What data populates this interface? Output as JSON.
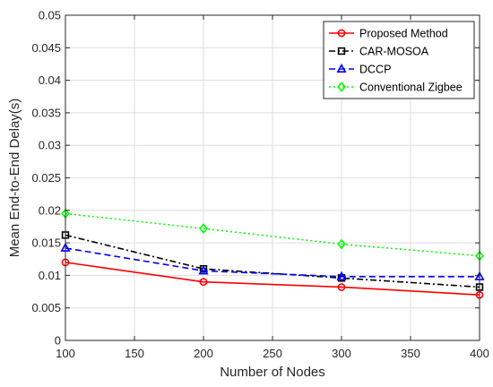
{
  "chart_data": {
    "type": "line",
    "title": "",
    "xlabel": "Number of Nodes",
    "ylabel": "Mean End-to-End Delay(s)",
    "x": [
      100,
      200,
      300,
      400
    ],
    "xlim": [
      100,
      400
    ],
    "ylim": [
      0,
      0.05
    ],
    "xticks": [
      "100",
      "150",
      "200",
      "250",
      "300",
      "350",
      "400"
    ],
    "yticks": [
      "0",
      "0.005",
      "0.01",
      "0.015",
      "0.02",
      "0.025",
      "0.03",
      "0.035",
      "0.04",
      "0.045",
      "0.05"
    ],
    "grid": true,
    "legend_position": "top-right",
    "series": [
      {
        "name": "Proposed Method",
        "values": [
          0.012,
          0.009,
          0.0082,
          0.007
        ],
        "color": "#ff0000",
        "dash": "solid",
        "marker": "circle"
      },
      {
        "name": "CAR-MOSOA",
        "values": [
          0.0162,
          0.011,
          0.0096,
          0.0082
        ],
        "color": "#000000",
        "dash": "dashdot",
        "marker": "square"
      },
      {
        "name": "DCCP",
        "values": [
          0.0142,
          0.0107,
          0.0098,
          0.0098
        ],
        "color": "#0000ff",
        "dash": "dash",
        "marker": "triangle"
      },
      {
        "name": "Conventional Zigbee",
        "values": [
          0.0195,
          0.0172,
          0.0148,
          0.013
        ],
        "color": "#00ff00",
        "dash": "dot",
        "marker": "diamond"
      }
    ]
  }
}
